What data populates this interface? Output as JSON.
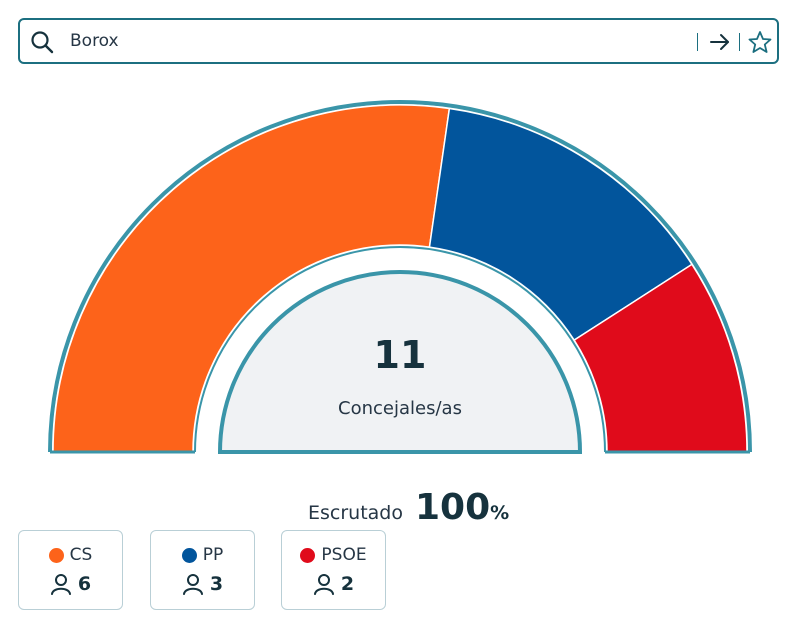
{
  "search": {
    "value": "Borox",
    "icon": "search-icon",
    "go_icon": "arrow-right-icon",
    "fav_icon": "star-icon"
  },
  "center": {
    "value": "11",
    "label": "Concejales/as"
  },
  "scrutiny": {
    "label": "Escrutado",
    "value": "100",
    "unit": "%"
  },
  "chart_data": {
    "type": "pie",
    "variant": "semicircle",
    "categories": [
      "CS",
      "PP",
      "PSOE"
    ],
    "values": [
      6,
      3,
      2
    ],
    "colors": [
      "#fd631a",
      "#02559c",
      "#e00b1b"
    ],
    "total": 11
  },
  "parties": [
    {
      "name": "CS",
      "seats": "6",
      "color": "#fd631a"
    },
    {
      "name": "PP",
      "seats": "3",
      "color": "#02559c"
    },
    {
      "name": "PSOE",
      "seats": "2",
      "color": "#e00b1b"
    }
  ],
  "colors": {
    "accent": "#3a95a9",
    "center_fill": "#f0f2f4"
  }
}
